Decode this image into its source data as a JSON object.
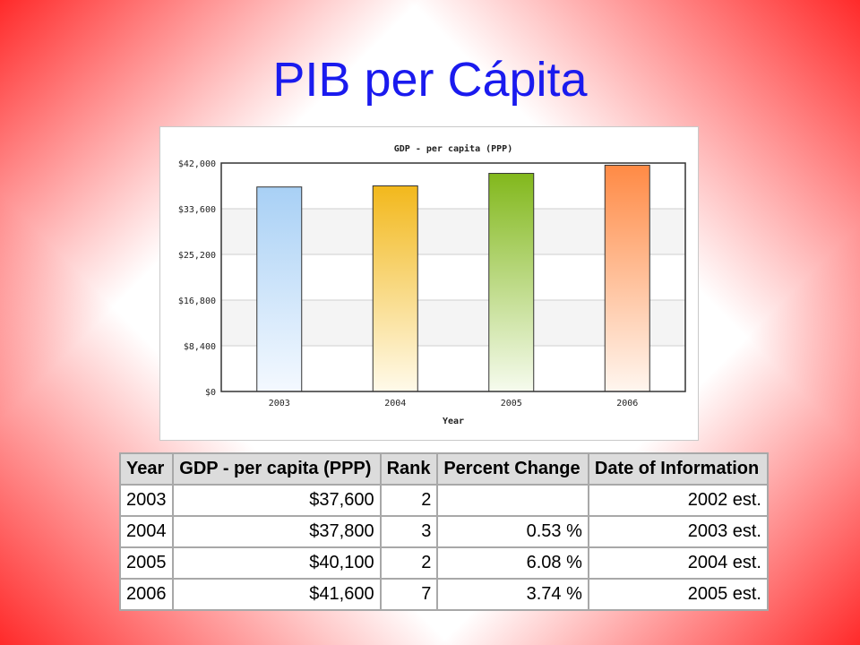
{
  "slide": {
    "title": "PIB per Cápita"
  },
  "chart_data": {
    "type": "bar",
    "title": "GDP - per capita (PPP)",
    "xlabel": "Year",
    "ylabel": "",
    "categories": [
      "2003",
      "2004",
      "2005",
      "2006"
    ],
    "values": [
      37600,
      37800,
      40100,
      41600
    ],
    "ylim": [
      0,
      42000
    ],
    "yticks": [
      0,
      8400,
      16800,
      25200,
      33600,
      42000
    ],
    "ytick_labels": [
      "$0",
      "$8,400",
      "$16,800",
      "$25,200",
      "$33,600",
      "$42,000"
    ],
    "bar_colors": [
      {
        "top": "#a8d0f5",
        "bottom": "#f4f9ff"
      },
      {
        "top": "#f2b81c",
        "bottom": "#fffaea"
      },
      {
        "top": "#82b81c",
        "bottom": "#f6fbee"
      },
      {
        "top": "#ff8a45",
        "bottom": "#fff6ef"
      }
    ],
    "grid": true,
    "legend": "none"
  },
  "table": {
    "headers": [
      "Year",
      "GDP - per capita (PPP)",
      "Rank",
      "Percent Change",
      "Date of Information"
    ],
    "rows": [
      [
        "2003",
        "$37,600",
        "2",
        "",
        "2002 est."
      ],
      [
        "2004",
        "$37,800",
        "3",
        "0.53 %",
        "2003 est."
      ],
      [
        "2005",
        "$40,100",
        "2",
        "6.08 %",
        "2004 est."
      ],
      [
        "2006",
        "$41,600",
        "7",
        "3.74 %",
        "2005 est."
      ]
    ]
  }
}
